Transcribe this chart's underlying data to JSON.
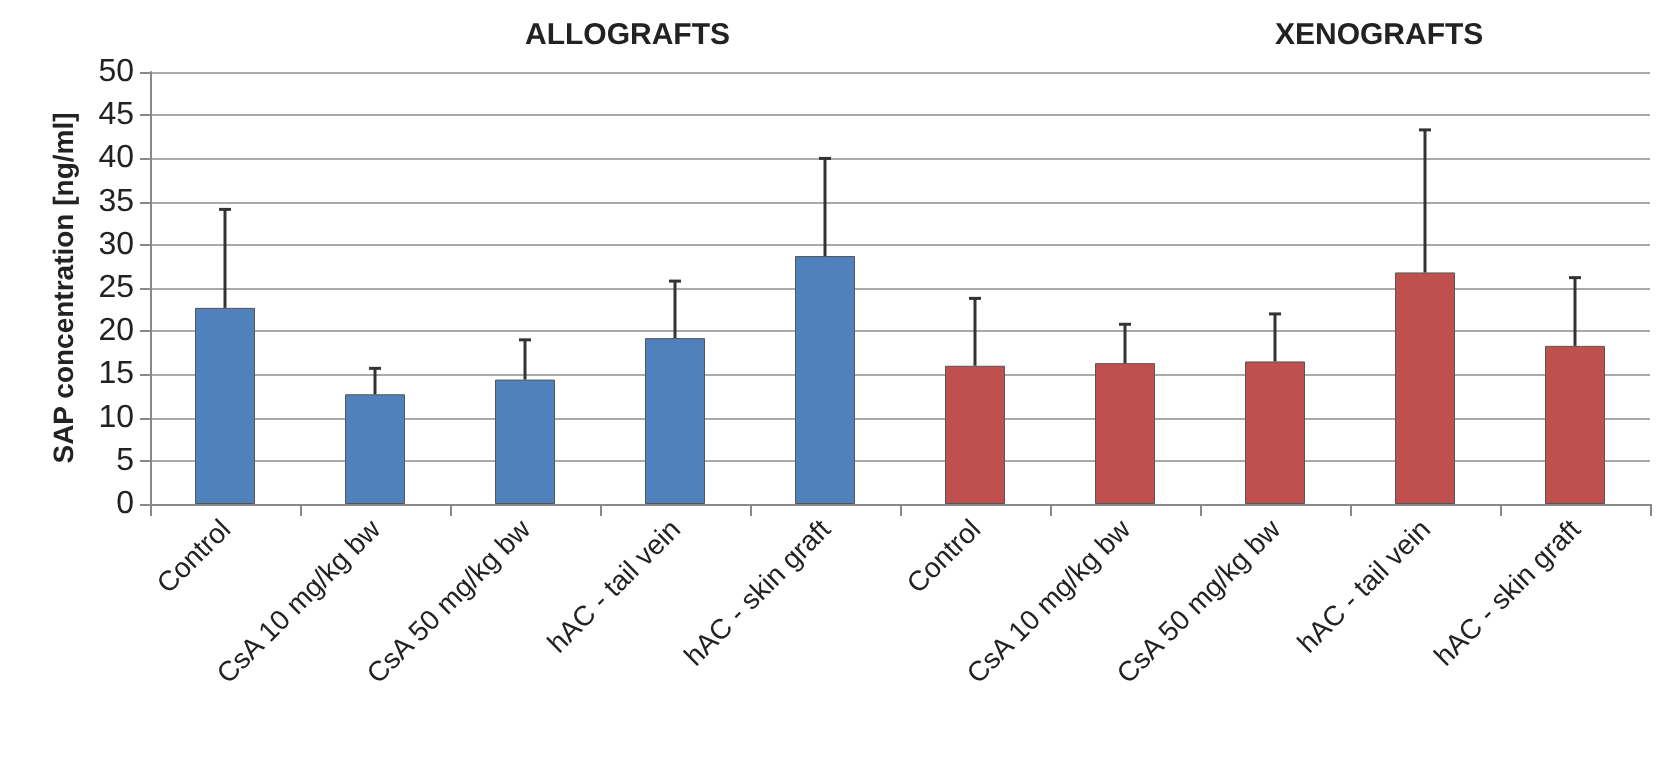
{
  "chart_data": {
    "type": "bar",
    "ylabel": "SAP concentration [ng/ml]",
    "annotations": [
      "ALLOGRAFTS",
      "XENOGRAFTS"
    ],
    "categories": [
      "Control",
      "CsA 10 mg/kg bw",
      "CsA 50 mg/kg bw",
      "hAC - tail vein",
      "hAC - skin graft",
      "Control",
      "CsA 10 mg/kg bw",
      "CsA 50 mg/kg bw",
      "hAC - tail vein",
      "hAC - skin graft"
    ],
    "values": [
      22.7,
      12.7,
      14.4,
      19.2,
      28.7,
      16.0,
      16.3,
      16.5,
      26.8,
      18.3
    ],
    "colors": [
      "#4f81bd",
      "#4f81bd",
      "#4f81bd",
      "#4f81bd",
      "#4f81bd",
      "#c0504d",
      "#c0504d",
      "#c0504d",
      "#c0504d",
      "#c0504d"
    ],
    "errors": [
      [
        22.7,
        34.1
      ],
      [
        12.7,
        15.7
      ],
      [
        14.4,
        19.0
      ],
      [
        19.2,
        25.8
      ],
      [
        28.7,
        40.0
      ],
      [
        16.0,
        23.8
      ],
      [
        16.3,
        20.8
      ],
      [
        16.5,
        22.0
      ],
      [
        26.8,
        43.3
      ],
      [
        18.3,
        26.2
      ]
    ],
    "ylim": [
      0,
      50
    ],
    "yticks": [
      0,
      5,
      10,
      15,
      20,
      25,
      30,
      35,
      40,
      45,
      50
    ],
    "grid": "y"
  }
}
